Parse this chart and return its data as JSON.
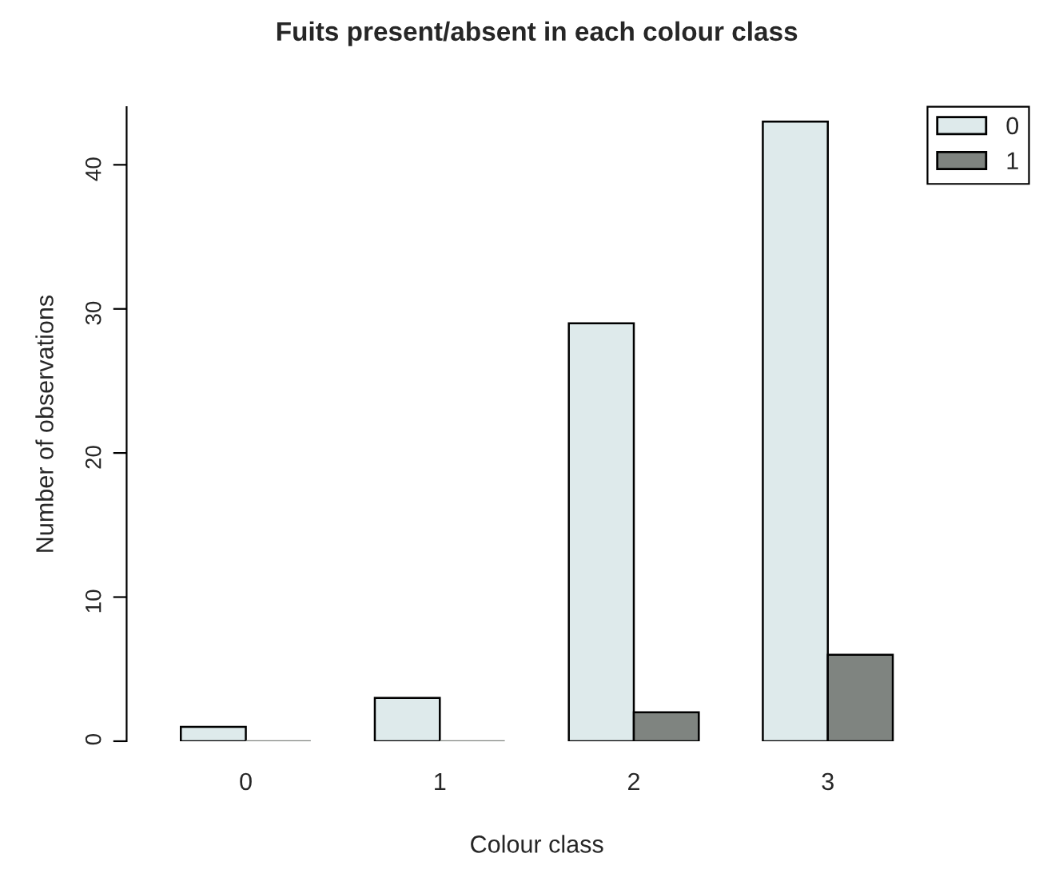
{
  "chart_data": {
    "type": "bar",
    "title": "Fuits present/absent in each colour class",
    "xlabel": "Colour class",
    "ylabel": "Number of observations",
    "categories": [
      "0",
      "1",
      "2",
      "3"
    ],
    "series": [
      {
        "name": "0",
        "color": "#deeaeb",
        "values": [
          1,
          3,
          29,
          43
        ]
      },
      {
        "name": "1",
        "color": "#7f8480",
        "values": [
          0,
          0,
          2,
          6
        ]
      }
    ],
    "ylim": [
      0,
      44
    ],
    "yticks": [
      0,
      10,
      20,
      30,
      40
    ],
    "grid": false,
    "legend": "top right"
  }
}
